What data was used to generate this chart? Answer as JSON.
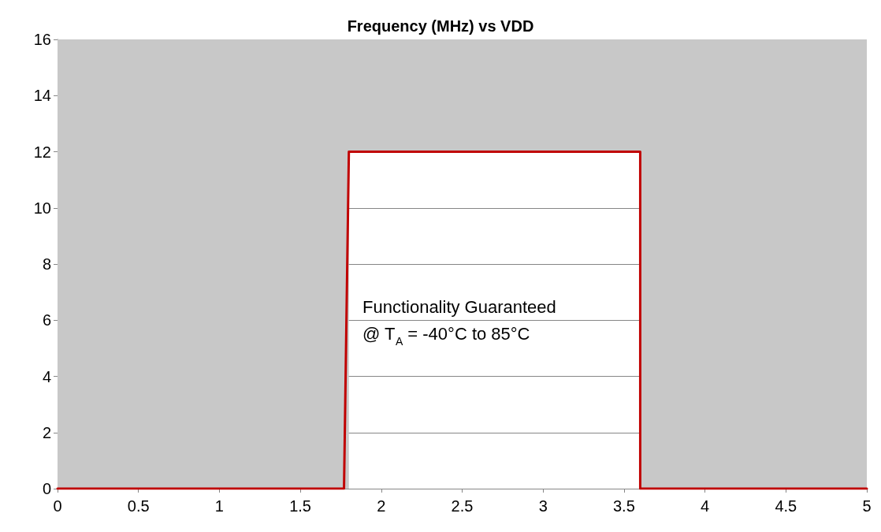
{
  "chart_data": {
    "type": "line",
    "title": "Frequency (MHz) vs VDD",
    "x": [
      0,
      1.77,
      1.8,
      3.6,
      3.6,
      5
    ],
    "series": [
      {
        "color": "#c00000",
        "values": [
          0,
          0,
          12,
          12,
          0,
          0
        ]
      }
    ],
    "xlim": [
      0,
      5
    ],
    "xticks": [
      0,
      0.5,
      1,
      1.5,
      2,
      2.5,
      3,
      3.5,
      4,
      4.5,
      5
    ],
    "ylim": [
      0,
      16
    ],
    "yticks": [
      0,
      2,
      4,
      6,
      8,
      10,
      12,
      14,
      16
    ],
    "grid": "y",
    "marker": "none",
    "line_style": "solid",
    "bands": [
      {
        "axis": "x",
        "from": 0,
        "to": 1.8,
        "color": "#c8c8c8"
      },
      {
        "axis": "x",
        "from": 3.6,
        "to": 5,
        "color": "#c8c8c8"
      },
      {
        "axis": "y",
        "from": 12,
        "to": 16,
        "color": "#c8c8c8"
      }
    ],
    "annotations": [
      "Functionality Guaranteed\n@ T$_{A}$ = -40°C to 85°C"
    ]
  }
}
